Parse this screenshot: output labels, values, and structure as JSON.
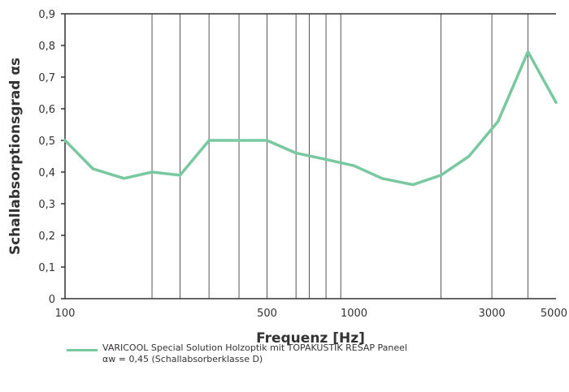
{
  "colors": {
    "series": "#78c8a0",
    "axis": "#333333",
    "grid": "#555555",
    "text": "#333333"
  },
  "chart_data": {
    "type": "line",
    "xlabel": "Frequenz [Hz]",
    "ylabel": "Schallabsorptionsgrad αs",
    "xscale": "log",
    "xlim": [
      100,
      5000
    ],
    "ylim": [
      0,
      0.9
    ],
    "grid": "vertical lines only",
    "xticks": [
      100,
      500,
      1000,
      3000,
      5000
    ],
    "xtick_labels": [
      "100",
      "500",
      "1000",
      "3000",
      "5000"
    ],
    "yticks": [
      0,
      0.1,
      0.2,
      0.3,
      0.4,
      0.5,
      0.6,
      0.7,
      0.8,
      0.9
    ],
    "ytick_labels": [
      "0",
      "0,1",
      "0,2",
      "0,3",
      "0,4",
      "0,5",
      "0,6",
      "0,7",
      "0,8",
      "0,9"
    ],
    "vertical_gridlines_at": [
      200,
      250,
      315,
      400,
      500,
      630,
      700,
      800,
      900,
      2000,
      3000,
      4000
    ],
    "series": [
      {
        "name": "VARICOOL Special Solution Holzoptik mit TOPAKUSTIK RESAP Paneel",
        "x": [
          100,
          125,
          160,
          200,
          250,
          315,
          400,
          500,
          630,
          800,
          1000,
          1250,
          1600,
          2000,
          2500,
          3150,
          4000,
          5000
        ],
        "values": [
          0.5,
          0.41,
          0.38,
          0.4,
          0.39,
          0.5,
          0.5,
          0.5,
          0.46,
          0.44,
          0.42,
          0.38,
          0.36,
          0.39,
          0.45,
          0.56,
          0.78,
          0.62
        ]
      }
    ],
    "legend": {
      "placement": "bottom-left",
      "label": "VARICOOL Special Solution Holzoptik mit TOPAKUSTIK RESAP Paneel",
      "note": "αw = 0,45 (Schallabsorberklasse D)"
    }
  }
}
